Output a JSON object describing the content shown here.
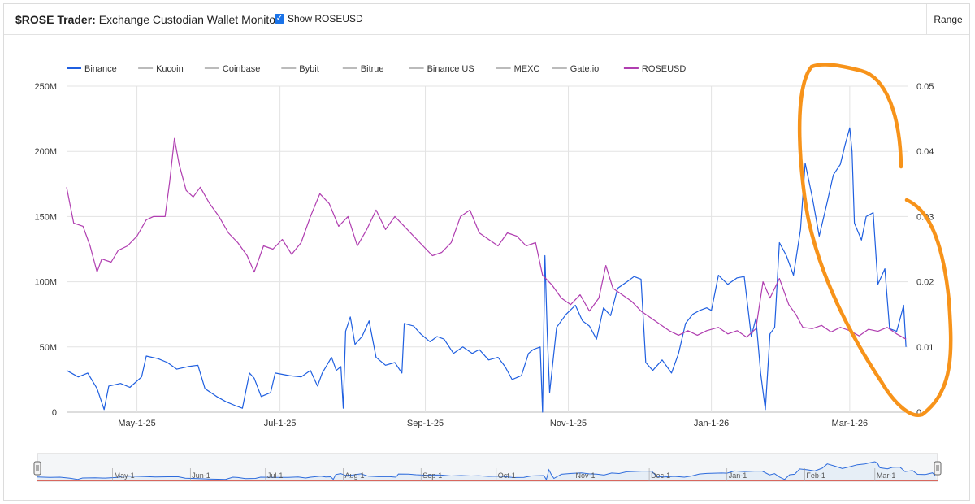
{
  "header": {
    "title_bold": "$ROSE Trader:",
    "title_rest": " Exchange Custodian Wallet Monitor",
    "show_label": "Show ROSEUSD",
    "show_checked": true,
    "range_label": "Range"
  },
  "colors": {
    "binance": "#1f5fe0",
    "roseusd": "#b03eb0",
    "other_series": "#bbbbbb",
    "annotation": "#f7931a",
    "navigator_fill": "#e6eef6",
    "navigator_line": "#2d6bdc",
    "navigator_base": "#d33a2c"
  },
  "chart_data": {
    "type": "line",
    "x_type": "date",
    "xlim": [
      "2025-04-01",
      "2026-03-26"
    ],
    "x_ticks": [
      {
        "label": "May-1-25",
        "date": "2025-05-01"
      },
      {
        "label": "Jul-1-25",
        "date": "2025-07-01"
      },
      {
        "label": "Sep-1-25",
        "date": "2025-09-01"
      },
      {
        "label": "Nov-1-25",
        "date": "2025-11-01"
      },
      {
        "label": "Jan-1-26",
        "date": "2026-01-01"
      },
      {
        "label": "Mar-1-26",
        "date": "2026-03-01"
      }
    ],
    "y_left": {
      "ylim": [
        0,
        250000000
      ],
      "ticks": [
        "0",
        "50M",
        "100M",
        "150M",
        "200M",
        "250M"
      ],
      "tick_values": [
        0,
        50000000,
        100000000,
        150000000,
        200000000,
        250000000
      ]
    },
    "y_right": {
      "ylim": [
        0,
        0.05
      ],
      "ticks": [
        "0",
        "0.01",
        "0.02",
        "0.03",
        "0.04",
        "0.05"
      ],
      "tick_values": [
        0,
        0.01,
        0.02,
        0.03,
        0.04,
        0.05
      ]
    },
    "grid": true,
    "legend_position": "top-left",
    "legend": [
      "Binance",
      "Kucoin",
      "Coinbase",
      "Bybit",
      "Bitrue",
      "Binance US",
      "MEXC",
      "Gate.io",
      "ROSEUSD"
    ],
    "series": [
      {
        "name": "Binance",
        "axis": "left",
        "points": [
          [
            "2025-04-01",
            32000000
          ],
          [
            "2025-04-06",
            27000000
          ],
          [
            "2025-04-10",
            30000000
          ],
          [
            "2025-04-14",
            18000000
          ],
          [
            "2025-04-17",
            2000000
          ],
          [
            "2025-04-19",
            20000000
          ],
          [
            "2025-04-24",
            22000000
          ],
          [
            "2025-04-28",
            19000000
          ],
          [
            "2025-05-03",
            27000000
          ],
          [
            "2025-05-05",
            43000000
          ],
          [
            "2025-05-10",
            41000000
          ],
          [
            "2025-05-14",
            38000000
          ],
          [
            "2025-05-18",
            33000000
          ],
          [
            "2025-05-23",
            35000000
          ],
          [
            "2025-05-27",
            36000000
          ],
          [
            "2025-05-30",
            18000000
          ],
          [
            "2025-06-04",
            12000000
          ],
          [
            "2025-06-08",
            8000000
          ],
          [
            "2025-06-12",
            5000000
          ],
          [
            "2025-06-15",
            3000000
          ],
          [
            "2025-06-18",
            30000000
          ],
          [
            "2025-06-20",
            26000000
          ],
          [
            "2025-06-23",
            12000000
          ],
          [
            "2025-06-27",
            15000000
          ],
          [
            "2025-06-29",
            30000000
          ],
          [
            "2025-07-05",
            28000000
          ],
          [
            "2025-07-10",
            27000000
          ],
          [
            "2025-07-14",
            32000000
          ],
          [
            "2025-07-17",
            20000000
          ],
          [
            "2025-07-19",
            30000000
          ],
          [
            "2025-07-23",
            42000000
          ],
          [
            "2025-07-25",
            32000000
          ],
          [
            "2025-07-27",
            35000000
          ],
          [
            "2025-07-28",
            3000000
          ],
          [
            "2025-07-29",
            62000000
          ],
          [
            "2025-07-31",
            73000000
          ],
          [
            "2025-08-02",
            52000000
          ],
          [
            "2025-08-05",
            58000000
          ],
          [
            "2025-08-08",
            70000000
          ],
          [
            "2025-08-11",
            42000000
          ],
          [
            "2025-08-15",
            36000000
          ],
          [
            "2025-08-19",
            38000000
          ],
          [
            "2025-08-22",
            30000000
          ],
          [
            "2025-08-23",
            68000000
          ],
          [
            "2025-08-27",
            66000000
          ],
          [
            "2025-08-30",
            60000000
          ],
          [
            "2025-09-03",
            54000000
          ],
          [
            "2025-09-06",
            58000000
          ],
          [
            "2025-09-09",
            56000000
          ],
          [
            "2025-09-13",
            45000000
          ],
          [
            "2025-09-17",
            50000000
          ],
          [
            "2025-09-21",
            45000000
          ],
          [
            "2025-09-24",
            48000000
          ],
          [
            "2025-09-28",
            40000000
          ],
          [
            "2025-10-02",
            42000000
          ],
          [
            "2025-10-05",
            35000000
          ],
          [
            "2025-10-08",
            25000000
          ],
          [
            "2025-10-12",
            28000000
          ],
          [
            "2025-10-15",
            45000000
          ],
          [
            "2025-10-17",
            48000000
          ],
          [
            "2025-10-20",
            50000000
          ],
          [
            "2025-10-21",
            0
          ],
          [
            "2025-10-22",
            120000000
          ],
          [
            "2025-10-23",
            60000000
          ],
          [
            "2025-10-24",
            15000000
          ],
          [
            "2025-10-27",
            65000000
          ],
          [
            "2025-10-31",
            75000000
          ],
          [
            "2025-11-04",
            82000000
          ],
          [
            "2025-11-07",
            70000000
          ],
          [
            "2025-11-10",
            66000000
          ],
          [
            "2025-11-13",
            56000000
          ],
          [
            "2025-11-16",
            80000000
          ],
          [
            "2025-11-19",
            74000000
          ],
          [
            "2025-11-22",
            95000000
          ],
          [
            "2025-11-26",
            100000000
          ],
          [
            "2025-11-29",
            104000000
          ],
          [
            "2025-12-02",
            102000000
          ],
          [
            "2025-12-04",
            38000000
          ],
          [
            "2025-12-07",
            32000000
          ],
          [
            "2025-12-11",
            40000000
          ],
          [
            "2025-12-15",
            30000000
          ],
          [
            "2025-12-18",
            45000000
          ],
          [
            "2025-12-21",
            68000000
          ],
          [
            "2025-12-24",
            75000000
          ],
          [
            "2025-12-27",
            78000000
          ],
          [
            "2025-12-30",
            80000000
          ],
          [
            "2026-01-01",
            78000000
          ],
          [
            "2026-01-04",
            105000000
          ],
          [
            "2026-01-08",
            98000000
          ],
          [
            "2026-01-12",
            103000000
          ],
          [
            "2026-01-15",
            104000000
          ],
          [
            "2026-01-18",
            58000000
          ],
          [
            "2026-01-20",
            72000000
          ],
          [
            "2026-01-22",
            30000000
          ],
          [
            "2026-01-24",
            2000000
          ],
          [
            "2026-01-26",
            60000000
          ],
          [
            "2026-01-28",
            65000000
          ],
          [
            "2026-01-30",
            130000000
          ],
          [
            "2026-02-02",
            120000000
          ],
          [
            "2026-02-05",
            105000000
          ],
          [
            "2026-02-08",
            140000000
          ],
          [
            "2026-02-10",
            191000000
          ],
          [
            "2026-02-13",
            165000000
          ],
          [
            "2026-02-16",
            135000000
          ],
          [
            "2026-02-19",
            158000000
          ],
          [
            "2026-02-22",
            182000000
          ],
          [
            "2026-02-25",
            190000000
          ],
          [
            "2026-02-27",
            205000000
          ],
          [
            "2026-03-01",
            218000000
          ],
          [
            "2026-03-02",
            200000000
          ],
          [
            "2026-03-03",
            145000000
          ],
          [
            "2026-03-06",
            132000000
          ],
          [
            "2026-03-08",
            150000000
          ],
          [
            "2026-03-11",
            153000000
          ],
          [
            "2026-03-13",
            98000000
          ],
          [
            "2026-03-16",
            110000000
          ],
          [
            "2026-03-18",
            64000000
          ],
          [
            "2026-03-21",
            62000000
          ],
          [
            "2026-03-23",
            75000000
          ],
          [
            "2026-03-24",
            82000000
          ],
          [
            "2026-03-25",
            50000000
          ]
        ]
      },
      {
        "name": "ROSEUSD",
        "axis": "right",
        "points": [
          [
            "2025-04-01",
            0.0345
          ],
          [
            "2025-04-04",
            0.029
          ],
          [
            "2025-04-08",
            0.0285
          ],
          [
            "2025-04-11",
            0.0255
          ],
          [
            "2025-04-14",
            0.0215
          ],
          [
            "2025-04-16",
            0.0235
          ],
          [
            "2025-04-20",
            0.023
          ],
          [
            "2025-04-23",
            0.0248
          ],
          [
            "2025-04-27",
            0.0255
          ],
          [
            "2025-05-01",
            0.027
          ],
          [
            "2025-05-05",
            0.0295
          ],
          [
            "2025-05-08",
            0.03
          ],
          [
            "2025-05-13",
            0.03
          ],
          [
            "2025-05-15",
            0.0355
          ],
          [
            "2025-05-17",
            0.042
          ],
          [
            "2025-05-19",
            0.038
          ],
          [
            "2025-05-22",
            0.034
          ],
          [
            "2025-05-25",
            0.033
          ],
          [
            "2025-05-28",
            0.0345
          ],
          [
            "2025-06-01",
            0.032
          ],
          [
            "2025-06-05",
            0.03
          ],
          [
            "2025-06-09",
            0.0275
          ],
          [
            "2025-06-13",
            0.026
          ],
          [
            "2025-06-17",
            0.024
          ],
          [
            "2025-06-20",
            0.0215
          ],
          [
            "2025-06-24",
            0.0255
          ],
          [
            "2025-06-28",
            0.025
          ],
          [
            "2025-07-02",
            0.0265
          ],
          [
            "2025-07-06",
            0.0242
          ],
          [
            "2025-07-10",
            0.026
          ],
          [
            "2025-07-14",
            0.03
          ],
          [
            "2025-07-18",
            0.0335
          ],
          [
            "2025-07-22",
            0.032
          ],
          [
            "2025-07-26",
            0.0285
          ],
          [
            "2025-07-30",
            0.03
          ],
          [
            "2025-08-03",
            0.0255
          ],
          [
            "2025-08-07",
            0.028
          ],
          [
            "2025-08-11",
            0.031
          ],
          [
            "2025-08-15",
            0.028
          ],
          [
            "2025-08-19",
            0.03
          ],
          [
            "2025-08-23",
            0.0285
          ],
          [
            "2025-08-27",
            0.027
          ],
          [
            "2025-08-31",
            0.0255
          ],
          [
            "2025-09-04",
            0.024
          ],
          [
            "2025-09-08",
            0.0245
          ],
          [
            "2025-09-12",
            0.026
          ],
          [
            "2025-09-16",
            0.03
          ],
          [
            "2025-09-20",
            0.031
          ],
          [
            "2025-09-24",
            0.0275
          ],
          [
            "2025-09-28",
            0.0265
          ],
          [
            "2025-10-02",
            0.0255
          ],
          [
            "2025-10-06",
            0.0275
          ],
          [
            "2025-10-10",
            0.027
          ],
          [
            "2025-10-14",
            0.0255
          ],
          [
            "2025-10-18",
            0.026
          ],
          [
            "2025-10-21",
            0.021
          ],
          [
            "2025-10-25",
            0.0195
          ],
          [
            "2025-10-29",
            0.0175
          ],
          [
            "2025-11-02",
            0.0165
          ],
          [
            "2025-11-06",
            0.018
          ],
          [
            "2025-11-10",
            0.0155
          ],
          [
            "2025-11-14",
            0.0175
          ],
          [
            "2025-11-17",
            0.0225
          ],
          [
            "2025-11-20",
            0.019
          ],
          [
            "2025-11-24",
            0.018
          ],
          [
            "2025-11-28",
            0.017
          ],
          [
            "2025-12-02",
            0.0155
          ],
          [
            "2025-12-06",
            0.0145
          ],
          [
            "2025-12-10",
            0.0135
          ],
          [
            "2025-12-14",
            0.0125
          ],
          [
            "2025-12-18",
            0.0118
          ],
          [
            "2025-12-22",
            0.0125
          ],
          [
            "2025-12-26",
            0.0118
          ],
          [
            "2025-12-30",
            0.0125
          ],
          [
            "2026-01-04",
            0.013
          ],
          [
            "2026-01-08",
            0.012
          ],
          [
            "2026-01-12",
            0.0125
          ],
          [
            "2026-01-16",
            0.0115
          ],
          [
            "2026-01-20",
            0.0128
          ],
          [
            "2026-01-23",
            0.02
          ],
          [
            "2026-01-26",
            0.0175
          ],
          [
            "2026-01-30",
            0.0205
          ],
          [
            "2026-02-03",
            0.0165
          ],
          [
            "2026-02-06",
            0.015
          ],
          [
            "2026-02-09",
            0.013
          ],
          [
            "2026-02-13",
            0.0128
          ],
          [
            "2026-02-17",
            0.0133
          ],
          [
            "2026-02-21",
            0.0123
          ],
          [
            "2026-02-25",
            0.013
          ],
          [
            "2026-03-01",
            0.0125
          ],
          [
            "2026-03-05",
            0.0117
          ],
          [
            "2026-03-09",
            0.0127
          ],
          [
            "2026-03-13",
            0.0124
          ],
          [
            "2026-03-17",
            0.013
          ],
          [
            "2026-03-21",
            0.012
          ],
          [
            "2026-03-25",
            0.0112
          ]
        ]
      }
    ]
  },
  "navigator": {
    "labels": [
      {
        "label": "May-1",
        "date": "2025-05-01"
      },
      {
        "label": "Jun-1",
        "date": "2025-06-01"
      },
      {
        "label": "Jul-1",
        "date": "2025-07-01"
      },
      {
        "label": "Aug-1",
        "date": "2025-08-01"
      },
      {
        "label": "Sep-1",
        "date": "2025-09-01"
      },
      {
        "label": "Oct-1",
        "date": "2025-10-01"
      },
      {
        "label": "Nov-1",
        "date": "2025-11-01"
      },
      {
        "label": "Dec-1",
        "date": "2025-12-01"
      },
      {
        "label": "Jan-1",
        "date": "2026-01-01"
      },
      {
        "label": "Feb-1",
        "date": "2026-02-01"
      },
      {
        "label": "Mar-1",
        "date": "2026-03-01"
      }
    ]
  }
}
